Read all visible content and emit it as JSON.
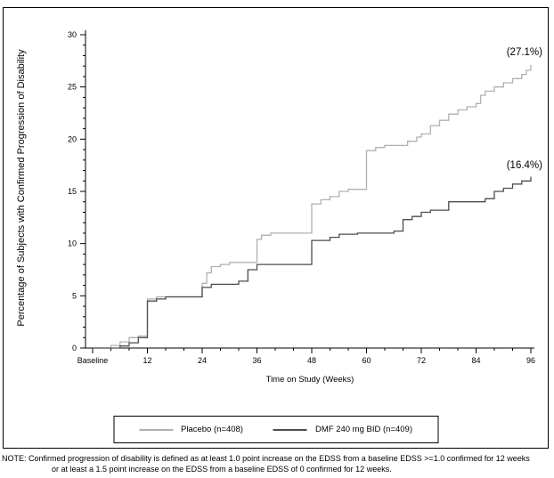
{
  "figure": {
    "y_axis_label": "Percentage of Subjects with Confirmed Progression of Disability",
    "x_axis_label": "Time on Study (Weeks)",
    "note_line1": "NOTE: Confirmed progression of disability is defined as at least 1.0 point increase on the EDSS from a baseline EDSS >=1.0 confirmed for 12 weeks",
    "note_line2": "or at least a 1.5 point increase on the EDSS from a baseline EDSS of 0 confirmed for 12 weeks."
  },
  "legend": {
    "items": [
      {
        "label": "Placebo (n=408)",
        "color": "#b0b0b0"
      },
      {
        "label": "DMF 240 mg BID (n=409)",
        "color": "#4d4d4d"
      }
    ]
  },
  "chart_data": {
    "type": "line",
    "subtype": "kaplan-meier-step",
    "title": "",
    "xlabel": "Time on Study (Weeks)",
    "ylabel": "Percentage of Subjects with Confirmed Progression of Disability",
    "xlim": [
      0,
      96
    ],
    "ylim": [
      0,
      30
    ],
    "grid": false,
    "legend_position": "bottom",
    "x_ticks": [
      {
        "value": 0,
        "label": "Baseline"
      },
      {
        "value": 12,
        "label": "12"
      },
      {
        "value": 24,
        "label": "24"
      },
      {
        "value": 36,
        "label": "36"
      },
      {
        "value": 48,
        "label": "48"
      },
      {
        "value": 60,
        "label": "60"
      },
      {
        "value": 72,
        "label": "72"
      },
      {
        "value": 84,
        "label": "84"
      },
      {
        "value": 96,
        "label": "96"
      }
    ],
    "y_ticks": [
      0,
      5,
      10,
      15,
      20,
      25,
      30
    ],
    "y_minor_step": 1,
    "x_minor_step": 4,
    "annotations": [
      {
        "text": "(27.1%)",
        "x": 96,
        "y": 28.2,
        "series": "Placebo (n=408)"
      },
      {
        "text": "(16.4%)",
        "x": 96,
        "y": 17.4,
        "series": "DMF 240 mg BID (n=409)"
      }
    ],
    "series": [
      {
        "name": "Placebo (n=408)",
        "color": "#b0b0b0",
        "final_value_pct": 27.1,
        "points": [
          [
            0,
            0
          ],
          [
            4,
            0.25
          ],
          [
            6,
            0.6
          ],
          [
            8,
            1.0
          ],
          [
            10,
            1.15
          ],
          [
            12,
            4.7
          ],
          [
            14,
            4.9
          ],
          [
            24,
            6.2
          ],
          [
            25,
            7.2
          ],
          [
            26,
            7.8
          ],
          [
            28,
            8.0
          ],
          [
            30,
            8.2
          ],
          [
            36,
            10.4
          ],
          [
            37,
            10.8
          ],
          [
            39,
            11.0
          ],
          [
            48,
            13.8
          ],
          [
            50,
            14.2
          ],
          [
            52,
            14.5
          ],
          [
            54,
            15.0
          ],
          [
            56,
            15.2
          ],
          [
            60,
            18.9
          ],
          [
            62,
            19.2
          ],
          [
            64,
            19.4
          ],
          [
            69,
            19.8
          ],
          [
            71,
            20.2
          ],
          [
            72,
            20.5
          ],
          [
            74,
            21.3
          ],
          [
            76,
            21.8
          ],
          [
            78,
            22.4
          ],
          [
            80,
            22.8
          ],
          [
            82,
            23.1
          ],
          [
            84,
            23.4
          ],
          [
            85,
            24.2
          ],
          [
            86,
            24.6
          ],
          [
            88,
            25.0
          ],
          [
            90,
            25.4
          ],
          [
            92,
            25.8
          ],
          [
            94,
            26.2
          ],
          [
            95,
            26.6
          ],
          [
            96,
            27.1
          ]
        ]
      },
      {
        "name": "DMF 240 mg BID (n=409)",
        "color": "#4d4d4d",
        "final_value_pct": 16.4,
        "points": [
          [
            0,
            0
          ],
          [
            6,
            0.2
          ],
          [
            8,
            0.5
          ],
          [
            10,
            1.0
          ],
          [
            12,
            4.5
          ],
          [
            14,
            4.7
          ],
          [
            16,
            4.9
          ],
          [
            24,
            5.8
          ],
          [
            26,
            6.1
          ],
          [
            32,
            6.4
          ],
          [
            34,
            7.5
          ],
          [
            36,
            8.0
          ],
          [
            48,
            10.3
          ],
          [
            52,
            10.6
          ],
          [
            54,
            10.9
          ],
          [
            58,
            11.0
          ],
          [
            66,
            11.2
          ],
          [
            68,
            12.3
          ],
          [
            70,
            12.6
          ],
          [
            72,
            13.0
          ],
          [
            74,
            13.2
          ],
          [
            78,
            14.0
          ],
          [
            86,
            14.3
          ],
          [
            88,
            15.0
          ],
          [
            90,
            15.3
          ],
          [
            92,
            15.7
          ],
          [
            94,
            16.0
          ],
          [
            96,
            16.4
          ]
        ]
      }
    ]
  }
}
